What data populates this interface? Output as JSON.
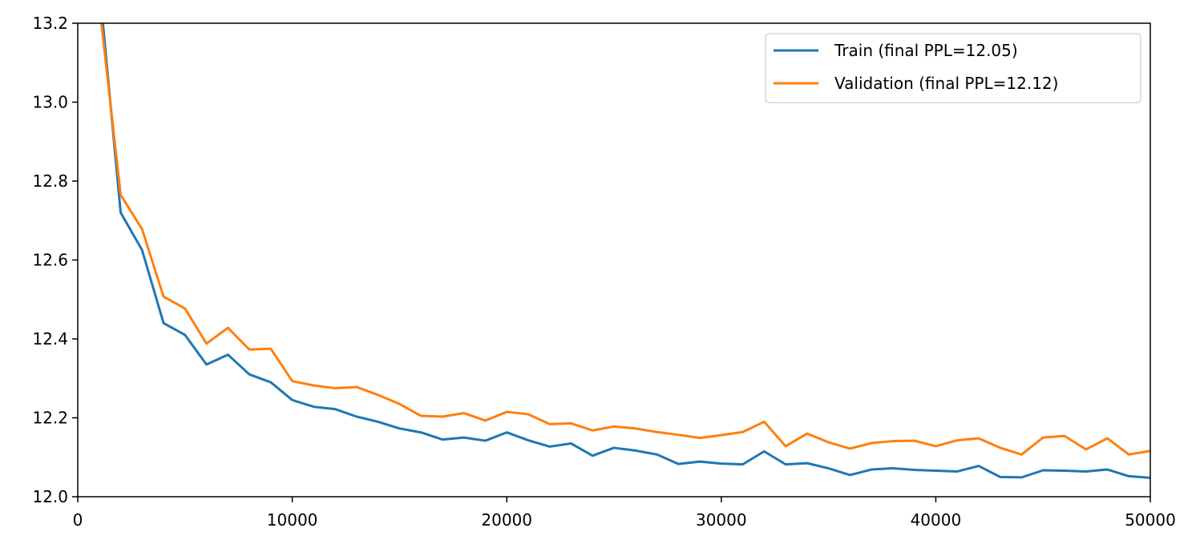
{
  "chart_data": {
    "type": "line",
    "title": "",
    "xlabel": "",
    "ylabel": "",
    "xlim": [
      0,
      50000
    ],
    "ylim": [
      12.0,
      13.2
    ],
    "xticks": [
      {
        "value": 0,
        "label": "0"
      },
      {
        "value": 10000,
        "label": "10000"
      },
      {
        "value": 20000,
        "label": "20000"
      },
      {
        "value": 30000,
        "label": "30000"
      },
      {
        "value": 40000,
        "label": "40000"
      },
      {
        "value": 50000,
        "label": "50000"
      }
    ],
    "yticks": [
      {
        "value": 12.0,
        "label": "12.0"
      },
      {
        "value": 12.2,
        "label": "12.2"
      },
      {
        "value": 12.4,
        "label": "12.4"
      },
      {
        "value": 12.6,
        "label": "12.6"
      },
      {
        "value": 12.8,
        "label": "12.8"
      },
      {
        "value": 13.0,
        "label": "13.0"
      },
      {
        "value": 13.2,
        "label": "13.2"
      }
    ],
    "grid": false,
    "legend_position": "top-right",
    "x": [
      1000,
      2000,
      3000,
      4000,
      5000,
      6000,
      7000,
      8000,
      9000,
      10000,
      11000,
      12000,
      13000,
      14000,
      15000,
      16000,
      17000,
      18000,
      19000,
      20000,
      21000,
      22000,
      23000,
      24000,
      25000,
      26000,
      27000,
      28000,
      29000,
      30000,
      31000,
      32000,
      33000,
      34000,
      35000,
      36000,
      37000,
      38000,
      39000,
      40000,
      41000,
      42000,
      43000,
      44000,
      45000,
      46000,
      47000,
      48000,
      49000,
      50000
    ],
    "series": [
      {
        "name": "Train (final PPL=12.05)",
        "color": "#1f77b4",
        "values": [
          13.3,
          12.72,
          12.625,
          12.44,
          12.41,
          12.335,
          12.36,
          12.31,
          12.29,
          12.245,
          12.228,
          12.222,
          12.203,
          12.19,
          12.173,
          12.163,
          12.145,
          12.15,
          12.142,
          12.163,
          12.143,
          12.127,
          12.135,
          12.104,
          12.124,
          12.117,
          12.107,
          12.083,
          12.089,
          12.084,
          12.082,
          12.115,
          12.082,
          12.085,
          12.072,
          12.055,
          12.069,
          12.072,
          12.068,
          12.066,
          12.064,
          12.078,
          12.05,
          12.049,
          12.067,
          12.066,
          12.064,
          12.069,
          12.052,
          12.048
        ]
      },
      {
        "name": "Validation (final PPL=12.12)",
        "color": "#ff7f0e",
        "values": [
          13.25,
          12.765,
          12.678,
          12.507,
          12.477,
          12.388,
          12.428,
          12.373,
          12.375,
          12.293,
          12.282,
          12.275,
          12.278,
          12.258,
          12.235,
          12.205,
          12.203,
          12.212,
          12.193,
          12.215,
          12.209,
          12.184,
          12.186,
          12.168,
          12.178,
          12.173,
          12.164,
          12.157,
          12.149,
          12.156,
          12.164,
          12.19,
          12.128,
          12.16,
          12.138,
          12.122,
          12.136,
          12.141,
          12.142,
          12.128,
          12.143,
          12.148,
          12.124,
          12.107,
          12.15,
          12.154,
          12.12,
          12.148,
          12.107,
          12.116
        ]
      }
    ]
  }
}
